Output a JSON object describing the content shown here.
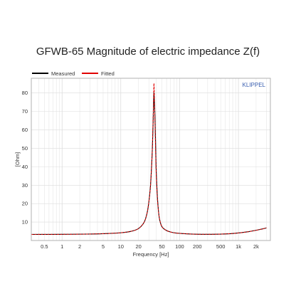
{
  "chart_data": {
    "type": "line",
    "title": "GFWB-65 Magnitude of electric impedance Z(f)",
    "xlabel": "Frequency [Hz]",
    "ylabel": "[Ohm]",
    "watermark": "KLIPPEL",
    "x_scale": "log",
    "xlim": [
      0.3,
      3500
    ],
    "ylim": [
      0,
      88
    ],
    "grid": true,
    "legend_position": "top-left",
    "x_ticks": [
      {
        "value": 0.5,
        "label": "0.5"
      },
      {
        "value": 1,
        "label": "1"
      },
      {
        "value": 2,
        "label": "2"
      },
      {
        "value": 5,
        "label": "5"
      },
      {
        "value": 10,
        "label": "10"
      },
      {
        "value": 20,
        "label": "20"
      },
      {
        "value": 50,
        "label": "50"
      },
      {
        "value": 100,
        "label": "100"
      },
      {
        "value": 200,
        "label": "200"
      },
      {
        "value": 500,
        "label": "500"
      },
      {
        "value": 1000,
        "label": "1k"
      },
      {
        "value": 2000,
        "label": "2k"
      }
    ],
    "y_ticks": [
      {
        "value": 10,
        "label": "10"
      },
      {
        "value": 20,
        "label": "20"
      },
      {
        "value": 30,
        "label": "30"
      },
      {
        "value": 40,
        "label": "40"
      },
      {
        "value": 50,
        "label": "50"
      },
      {
        "value": 60,
        "label": "60"
      },
      {
        "value": 70,
        "label": "70"
      },
      {
        "value": 80,
        "label": "80"
      }
    ],
    "series": [
      {
        "name": "Measured",
        "color": "#000000",
        "x": [
          0.3,
          1,
          3,
          6,
          10,
          15,
          20,
          25,
          28,
          30,
          32,
          34,
          35,
          36,
          36.5,
          37,
          37.5,
          38,
          39,
          40,
          42,
          44,
          46,
          50,
          60,
          80,
          120,
          200,
          400,
          800,
          1500,
          2500,
          3000
        ],
        "y": [
          3.3,
          3.35,
          3.5,
          3.8,
          4.2,
          5.0,
          6.5,
          10,
          15,
          21,
          30,
          46,
          58,
          73,
          80,
          77,
          73,
          68,
          53,
          38,
          23,
          15,
          11,
          7.5,
          5.4,
          4.2,
          3.7,
          3.4,
          3.4,
          3.8,
          4.8,
          6.2,
          6.8
        ]
      },
      {
        "name": "Fitted",
        "color": "#e00000",
        "x": [
          0.3,
          1,
          3,
          6,
          10,
          15,
          20,
          25,
          28,
          30,
          32,
          34,
          35,
          36,
          36.5,
          37,
          37.5,
          38,
          39,
          40,
          42,
          44,
          46,
          50,
          60,
          80,
          120,
          200,
          400,
          800,
          1500,
          2500,
          3000
        ],
        "y": [
          3.3,
          3.35,
          3.5,
          3.8,
          4.2,
          5.0,
          6.5,
          10,
          15,
          21,
          30,
          46,
          60,
          76,
          85,
          82,
          74,
          65,
          50,
          36,
          22,
          15,
          11,
          7.5,
          5.4,
          4.2,
          3.7,
          3.4,
          3.4,
          3.8,
          4.8,
          6.2,
          6.9
        ]
      }
    ]
  }
}
